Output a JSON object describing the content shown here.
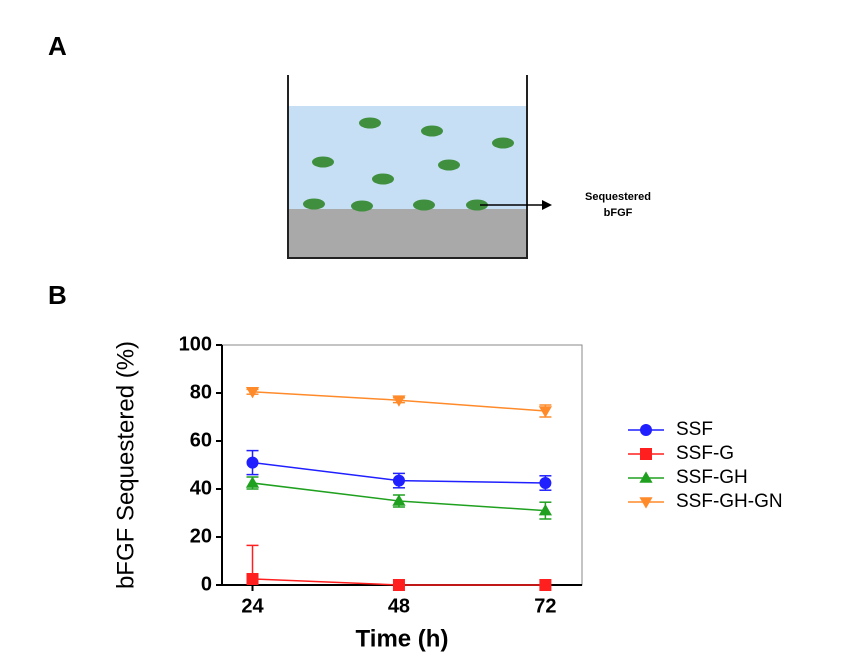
{
  "panel_labels": [
    "A",
    "B"
  ],
  "diagram": {
    "annotation_lines": [
      "Sequestered",
      "bFGF"
    ]
  },
  "chart_data": {
    "type": "line",
    "x_label": "Time (h)",
    "y_label": "bFGF Sequestered (%)",
    "x": [
      24,
      48,
      72
    ],
    "xlim": [
      19,
      78
    ],
    "xticks": [
      24,
      48,
      72
    ],
    "ylim": [
      0,
      100
    ],
    "yticks": [
      0,
      20,
      40,
      60,
      80,
      100
    ],
    "legend": "right",
    "series": [
      {
        "name": "SSF",
        "color": "#1f1fff",
        "marker": "circle",
        "values": [
          51,
          43.5,
          42.5
        ],
        "errors": [
          5,
          3,
          3
        ]
      },
      {
        "name": "SSF-G",
        "color": "#ff1f1f",
        "marker": "square",
        "values": [
          2.5,
          0,
          0
        ],
        "errors": [
          14,
          0,
          0
        ]
      },
      {
        "name": "SSF-GH",
        "color": "#1fa01f",
        "marker": "triangle",
        "values": [
          42.5,
          35,
          31
        ],
        "errors": [
          2.5,
          2.5,
          3.5
        ]
      },
      {
        "name": "SSF-GH-GN",
        "color": "#ff8a2a",
        "marker": "triangle-down",
        "values": [
          80.5,
          77,
          72.5
        ],
        "errors": [
          1,
          1,
          2.5
        ]
      }
    ]
  }
}
